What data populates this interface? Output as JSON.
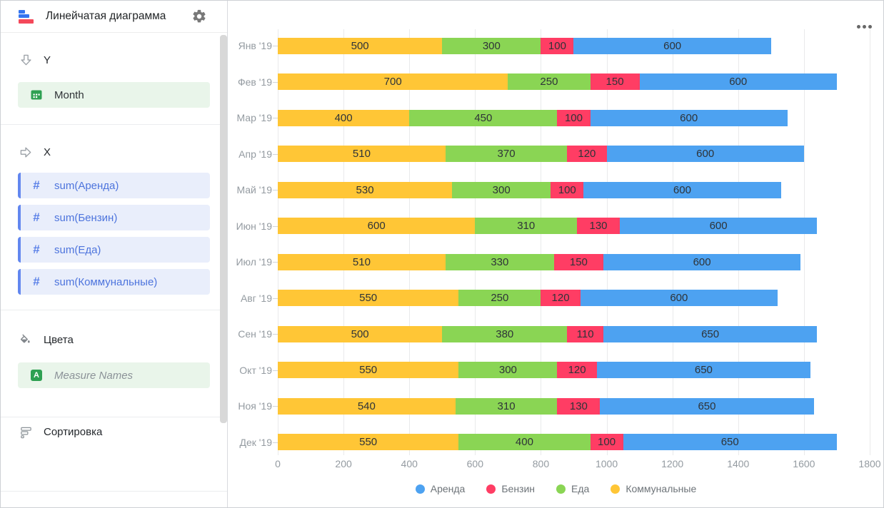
{
  "app": {
    "title": "Линейчатая диаграмма",
    "logo_icon": "bar-chart-logo",
    "settings_icon": "gear-icon"
  },
  "sidebar": {
    "sections": [
      {
        "label": "Y",
        "icon": "arrow-down-icon",
        "fields": [
          {
            "label": "Month",
            "icon": "calendar-icon",
            "kind": "dimension"
          }
        ]
      },
      {
        "label": "X",
        "icon": "arrow-right-icon",
        "fields": [
          {
            "label": "sum(Аренда)",
            "icon": "number-icon",
            "kind": "measure"
          },
          {
            "label": "sum(Бензин)",
            "icon": "number-icon",
            "kind": "measure"
          },
          {
            "label": "sum(Еда)",
            "icon": "number-icon",
            "kind": "measure"
          },
          {
            "label": "sum(Коммунальные)",
            "icon": "number-icon",
            "kind": "measure"
          }
        ]
      },
      {
        "label": "Цвета",
        "icon": "paint-bucket-icon",
        "fields": [
          {
            "label": "Measure Names",
            "icon": "a-badge-icon",
            "kind": "system"
          }
        ]
      },
      {
        "label": "Сортировка",
        "icon": "sort-icon",
        "fields": []
      }
    ]
  },
  "chart": {
    "menu_icon": "ellipsis-menu"
  },
  "chart_data": {
    "type": "bar",
    "orientation": "horizontal",
    "stacked": true,
    "categories": [
      "Янв '19",
      "Фев '19",
      "Мар '19",
      "Апр '19",
      "Май '19",
      "Июн '19",
      "Июл '19",
      "Авг '19",
      "Сен '19",
      "Окт '19",
      "Ноя '19",
      "Дек '19"
    ],
    "series": [
      {
        "name": "Коммунальные",
        "color": "#FFC636",
        "values": [
          500,
          700,
          400,
          510,
          530,
          600,
          510,
          550,
          500,
          550,
          540,
          550
        ]
      },
      {
        "name": "Еда",
        "color": "#8AD554",
        "values": [
          300,
          250,
          450,
          370,
          300,
          310,
          330,
          250,
          380,
          300,
          310,
          400
        ]
      },
      {
        "name": "Бензин",
        "color": "#FF3D64",
        "values": [
          100,
          150,
          100,
          120,
          100,
          130,
          150,
          120,
          110,
          120,
          130,
          100
        ]
      },
      {
        "name": "Аренда",
        "color": "#4DA2F1",
        "values": [
          600,
          600,
          600,
          600,
          600,
          600,
          600,
          600,
          650,
          650,
          650,
          650
        ]
      }
    ],
    "legend": [
      {
        "label": "Аренда",
        "color": "#4DA2F1"
      },
      {
        "label": "Бензин",
        "color": "#FF3D64"
      },
      {
        "label": "Еда",
        "color": "#8AD554"
      },
      {
        "label": "Коммунальные",
        "color": "#FFC636"
      }
    ],
    "x_axis": {
      "min": 0,
      "max": 1800,
      "ticks": [
        0,
        200,
        400,
        600,
        800,
        1000,
        1200,
        1400,
        1600,
        1800
      ]
    },
    "grid": true,
    "data_labels": true,
    "legend_position": "bottom"
  },
  "colors": {
    "dimension_field_bg": "#e9f5ea",
    "measure_field_bg": "#e9eefb",
    "measure_field_text": "#4d74dd",
    "measure_field_stripe": "#6287ef",
    "field_icon_green": "#2ea052",
    "grid_line": "#e9eaeb",
    "axis_text": "#949ba1",
    "bar_label_text": "#2e3338",
    "legend_text": "#6d7378"
  }
}
